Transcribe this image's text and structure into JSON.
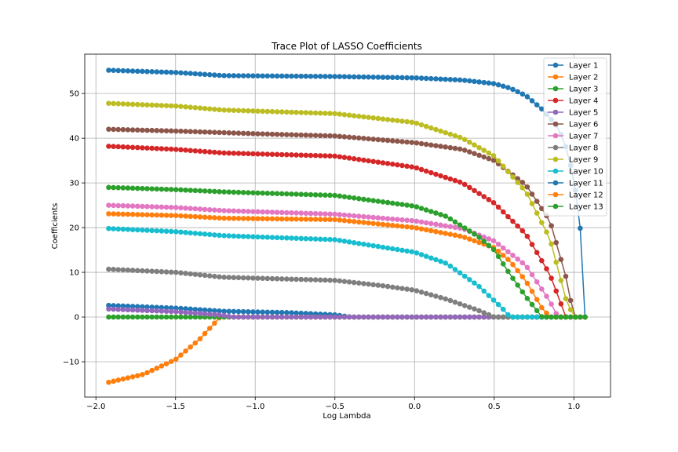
{
  "chart_data": {
    "type": "line",
    "title": "Trace Plot of LASSO Coefficients",
    "xlabel": "Log Lambda",
    "ylabel": "Coefficients",
    "xlim": [
      -2.07,
      1.23
    ],
    "ylim": [
      -17.9,
      58.8
    ],
    "xticks": [
      -2.0,
      -1.5,
      -1.0,
      -0.5,
      0.0,
      0.5,
      1.0
    ],
    "xtick_labels": [
      "−2.0",
      "−1.5",
      "−1.0",
      "−0.5",
      "0.0",
      "0.5",
      "1.0"
    ],
    "yticks": [
      -10,
      0,
      10,
      20,
      30,
      40,
      50
    ],
    "ytick_labels": [
      "−10",
      "0",
      "10",
      "20",
      "30",
      "40",
      "50"
    ],
    "grid": true,
    "legend_position": "top-right",
    "marker": "circle",
    "x": {
      "start": -1.92,
      "end": 1.07,
      "count": 100
    },
    "series": [
      {
        "name": "Layer 1",
        "color": "#1f77b4",
        "points": [
          [
            -1.92,
            2.6
          ],
          [
            -1.5,
            2.0
          ],
          [
            -1.2,
            1.3
          ],
          [
            -0.8,
            1.0
          ],
          [
            -0.5,
            0.5
          ],
          [
            -0.4,
            0.0
          ],
          [
            1.07,
            0.0
          ]
        ]
      },
      {
        "name": "Layer 2",
        "color": "#ff7f0e",
        "points": [
          [
            -1.92,
            -14.6
          ],
          [
            -1.7,
            -12.8
          ],
          [
            -1.5,
            -9.5
          ],
          [
            -1.35,
            -5.0
          ],
          [
            -1.22,
            0.0
          ],
          [
            1.07,
            0.0
          ]
        ]
      },
      {
        "name": "Layer 3",
        "color": "#2ca02c",
        "points": [
          [
            -1.92,
            0.0
          ],
          [
            1.07,
            0.0
          ]
        ]
      },
      {
        "name": "Layer 4",
        "color": "#d62728",
        "points": [
          [
            -1.92,
            38.2
          ],
          [
            -1.5,
            37.5
          ],
          [
            -1.2,
            36.7
          ],
          [
            -0.5,
            36.0
          ],
          [
            0.0,
            33.5
          ],
          [
            0.3,
            30.0
          ],
          [
            0.5,
            25.5
          ],
          [
            0.7,
            18.5
          ],
          [
            0.85,
            9.5
          ],
          [
            0.95,
            0.0
          ],
          [
            1.07,
            0.0
          ]
        ]
      },
      {
        "name": "Layer 5",
        "color": "#9467bd",
        "points": [
          [
            -1.92,
            1.8
          ],
          [
            -1.5,
            1.2
          ],
          [
            -1.2,
            0.4
          ],
          [
            -1.15,
            0.0
          ],
          [
            1.07,
            0.0
          ]
        ]
      },
      {
        "name": "Layer 6",
        "color": "#8c564b",
        "points": [
          [
            -1.92,
            42.0
          ],
          [
            -1.5,
            41.6
          ],
          [
            -1.0,
            41.0
          ],
          [
            -0.5,
            40.5
          ],
          [
            0.0,
            39.0
          ],
          [
            0.3,
            37.5
          ],
          [
            0.5,
            35.0
          ],
          [
            0.7,
            29.5
          ],
          [
            0.85,
            21.5
          ],
          [
            0.95,
            9.0
          ],
          [
            1.0,
            0.0
          ],
          [
            1.07,
            0.0
          ]
        ]
      },
      {
        "name": "Layer 7",
        "color": "#e377c2",
        "points": [
          [
            -1.92,
            25.0
          ],
          [
            -1.5,
            24.5
          ],
          [
            -1.2,
            23.8
          ],
          [
            -0.5,
            23.0
          ],
          [
            0.0,
            21.5
          ],
          [
            0.3,
            19.8
          ],
          [
            0.5,
            17.0
          ],
          [
            0.7,
            11.5
          ],
          [
            0.85,
            3.5
          ],
          [
            0.9,
            0.0
          ],
          [
            1.07,
            0.0
          ]
        ]
      },
      {
        "name": "Layer 8",
        "color": "#7f7f7f",
        "points": [
          [
            -1.92,
            10.7
          ],
          [
            -1.5,
            10.0
          ],
          [
            -1.2,
            8.9
          ],
          [
            -0.5,
            8.2
          ],
          [
            -0.2,
            7.0
          ],
          [
            0.0,
            6.0
          ],
          [
            0.2,
            4.0
          ],
          [
            0.4,
            1.5
          ],
          [
            0.5,
            0.0
          ],
          [
            1.07,
            0.0
          ]
        ]
      },
      {
        "name": "Layer 9",
        "color": "#bcbd22",
        "points": [
          [
            -1.92,
            47.8
          ],
          [
            -1.5,
            47.2
          ],
          [
            -1.2,
            46.3
          ],
          [
            -0.5,
            45.5
          ],
          [
            0.0,
            43.5
          ],
          [
            0.3,
            40.0
          ],
          [
            0.5,
            36.0
          ],
          [
            0.7,
            28.0
          ],
          [
            0.85,
            17.5
          ],
          [
            0.95,
            4.0
          ],
          [
            1.0,
            0.0
          ],
          [
            1.07,
            0.0
          ]
        ]
      },
      {
        "name": "Layer 10",
        "color": "#17becf",
        "points": [
          [
            -1.92,
            19.8
          ],
          [
            -1.5,
            19.1
          ],
          [
            -1.2,
            18.2
          ],
          [
            -0.5,
            17.3
          ],
          [
            0.0,
            14.5
          ],
          [
            0.2,
            12.0
          ],
          [
            0.4,
            7.0
          ],
          [
            0.55,
            2.0
          ],
          [
            0.6,
            0.0
          ],
          [
            1.07,
            0.0
          ]
        ]
      },
      {
        "name": "Layer 11",
        "color": "#1f77b4",
        "points": [
          [
            -1.92,
            55.2
          ],
          [
            -1.5,
            54.7
          ],
          [
            -1.2,
            54.0
          ],
          [
            -0.5,
            53.8
          ],
          [
            0.0,
            53.5
          ],
          [
            0.3,
            53.0
          ],
          [
            0.5,
            52.2
          ],
          [
            0.6,
            51.2
          ],
          [
            0.7,
            49.5
          ],
          [
            0.8,
            46.5
          ],
          [
            0.9,
            42.5
          ],
          [
            0.95,
            38.0
          ],
          [
            1.0,
            31.0
          ],
          [
            1.05,
            17.0
          ],
          [
            1.07,
            0.0
          ]
        ]
      },
      {
        "name": "Layer 12",
        "color": "#ff7f0e",
        "points": [
          [
            -1.92,
            23.1
          ],
          [
            -1.5,
            22.7
          ],
          [
            -1.2,
            22.1
          ],
          [
            -0.5,
            21.8
          ],
          [
            0.0,
            20.0
          ],
          [
            0.3,
            18.0
          ],
          [
            0.5,
            15.5
          ],
          [
            0.6,
            12.5
          ],
          [
            0.7,
            8.0
          ],
          [
            0.8,
            2.0
          ],
          [
            0.85,
            0.0
          ],
          [
            1.07,
            0.0
          ]
        ]
      },
      {
        "name": "Layer 13",
        "color": "#2ca02c",
        "points": [
          [
            -1.92,
            29.0
          ],
          [
            -1.5,
            28.5
          ],
          [
            -1.2,
            28.0
          ],
          [
            -0.5,
            27.2
          ],
          [
            0.0,
            24.8
          ],
          [
            0.2,
            22.5
          ],
          [
            0.4,
            18.0
          ],
          [
            0.5,
            15.0
          ],
          [
            0.6,
            9.5
          ],
          [
            0.7,
            4.5
          ],
          [
            0.8,
            0.0
          ],
          [
            1.07,
            0.0
          ]
        ]
      }
    ]
  }
}
